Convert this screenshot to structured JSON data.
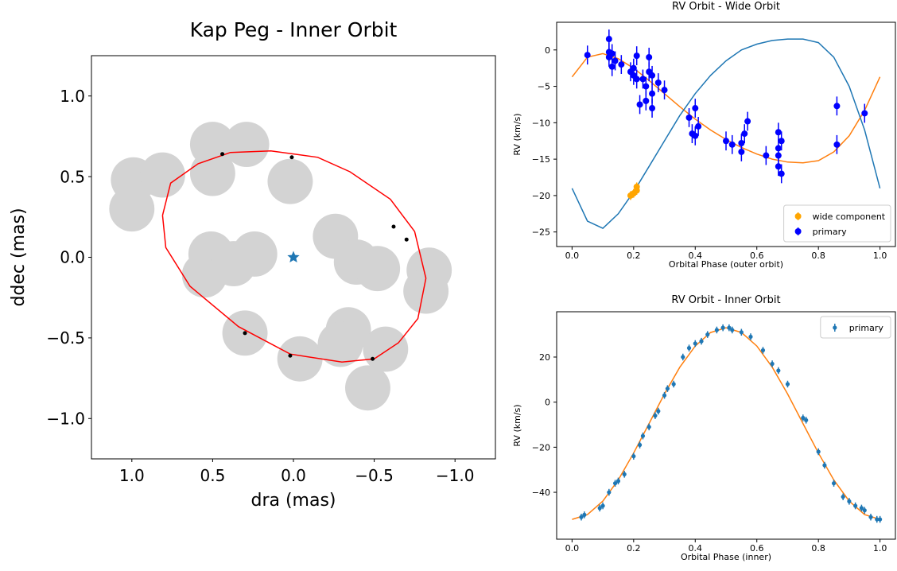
{
  "chart_data": [
    {
      "type": "scatter",
      "title": "Kap Peg - Inner Orbit",
      "xlabel": "dra (mas)",
      "ylabel": "ddec (mas)",
      "xlim": [
        1.25,
        -1.25
      ],
      "ylim": [
        -1.25,
        1.25
      ],
      "xticks": [
        {
          "value": 1,
          "label": "1.0"
        },
        {
          "value": 0.5,
          "label": "0.5"
        },
        {
          "value": 0,
          "label": "0.0"
        },
        {
          "value": -0.5,
          "label": "−0.5"
        },
        {
          "value": -1,
          "label": "−1.0"
        }
      ],
      "yticks": [
        {
          "value": 1,
          "label": "1.0"
        },
        {
          "value": 0.5,
          "label": "0.5"
        },
        {
          "value": 0,
          "label": "0.0"
        },
        {
          "value": -0.5,
          "label": "−0.5"
        },
        {
          "value": -1,
          "label": "−1.0"
        }
      ],
      "grid": false,
      "series": [
        {
          "style": "circle",
          "color": "#d3d3d3",
          "x": [
            0.99,
            0.81,
            1.0,
            0.5,
            0.29,
            0.5,
            0.02,
            0.51,
            0.55,
            0.24,
            0.37,
            -0.26,
            -0.39,
            -0.52,
            -0.84,
            -0.82,
            0.3,
            -0.04,
            -0.34,
            -0.29,
            -0.57,
            -0.46
          ],
          "values": [
            0.48,
            0.51,
            0.3,
            0.7,
            0.7,
            0.52,
            0.47,
            0.02,
            -0.11,
            0.02,
            -0.04,
            0.13,
            -0.03,
            -0.07,
            -0.08,
            -0.21,
            -0.47,
            -0.63,
            -0.45,
            -0.54,
            -0.57,
            -0.81
          ],
          "sizes": [
            0.14,
            0.14,
            0.14,
            0.14,
            0.14,
            0.14,
            0.14,
            0.14,
            0.14,
            0.14,
            0.14,
            0.14,
            0.14,
            0.14,
            0.14,
            0.14,
            0.14,
            0.14,
            0.14,
            0.14,
            0.14,
            0.14
          ]
        },
        {
          "style": "line",
          "color": "#ff0000",
          "x": [
            0.81,
            0.76,
            0.59,
            0.39,
            0.14,
            -0.15,
            -0.35,
            -0.6,
            -0.75,
            -0.82,
            -0.77,
            -0.65,
            -0.5,
            -0.3,
            0.02,
            0.34,
            0.64,
            0.79,
            0.81
          ],
          "values": [
            0.26,
            0.46,
            0.58,
            0.65,
            0.66,
            0.62,
            0.53,
            0.36,
            0.16,
            -0.13,
            -0.38,
            -0.53,
            -0.63,
            -0.65,
            -0.6,
            -0.43,
            -0.18,
            0.06,
            0.26
          ]
        },
        {
          "style": "dot",
          "color": "#000000",
          "x": [
            0.44,
            0.01,
            -0.62,
            -0.7,
            0.3,
            0.02,
            -0.49
          ],
          "values": [
            0.64,
            0.62,
            0.19,
            0.11,
            -0.47,
            -0.61,
            -0.63
          ]
        },
        {
          "style": "star",
          "color": "#1f77b4",
          "x": [
            0
          ],
          "values": [
            0
          ]
        }
      ]
    },
    {
      "type": "errorbar",
      "title": "RV Orbit - Wide Orbit",
      "xlabel": "Orbital Phase (outer orbit)",
      "ylabel": "RV (km/s)",
      "xlim": [
        -0.05,
        1.05
      ],
      "ylim": [
        -27,
        3.8
      ],
      "xticks": [
        {
          "value": 0,
          "label": "0.0"
        },
        {
          "value": 0.2,
          "label": "0.2"
        },
        {
          "value": 0.4,
          "label": "0.4"
        },
        {
          "value": 0.6,
          "label": "0.6"
        },
        {
          "value": 0.8,
          "label": "0.8"
        },
        {
          "value": 1,
          "label": "1.0"
        }
      ],
      "yticks": [
        0,
        {
          "value": -5,
          "label": "−5"
        },
        {
          "value": -10,
          "label": "−10"
        },
        {
          "value": -15,
          "label": "−15"
        },
        {
          "value": -20,
          "label": "−20"
        },
        {
          "value": -25,
          "label": "−25"
        }
      ],
      "grid": false,
      "legend": "lower right",
      "series": [
        {
          "style": "line",
          "color": "#ff7f0e",
          "x": [
            0,
            0.05,
            0.1,
            0.15,
            0.2,
            0.25,
            0.3,
            0.35,
            0.4,
            0.45,
            0.5,
            0.55,
            0.6,
            0.65,
            0.7,
            0.75,
            0.8,
            0.85,
            0.9,
            0.95,
            1.0
          ],
          "values": [
            -3.7,
            -1.0,
            -0.5,
            -1.2,
            -2.5,
            -4.2,
            -6,
            -7.8,
            -9.5,
            -11,
            -12.3,
            -13.4,
            -14.3,
            -15,
            -15.4,
            -15.5,
            -15.2,
            -14,
            -11.8,
            -8.3,
            -3.7
          ]
        },
        {
          "style": "line",
          "color": "#1f77b4",
          "x": [
            0,
            0.05,
            0.1,
            0.15,
            0.2,
            0.25,
            0.3,
            0.35,
            0.4,
            0.45,
            0.5,
            0.55,
            0.6,
            0.65,
            0.7,
            0.75,
            0.8,
            0.85,
            0.9,
            0.95,
            1.0
          ],
          "values": [
            -19,
            -23.5,
            -24.5,
            -22.5,
            -19.5,
            -16,
            -12.5,
            -9,
            -6,
            -3.5,
            -1.5,
            0,
            0.8,
            1.3,
            1.5,
            1.5,
            1,
            -1,
            -5,
            -11,
            -19
          ]
        },
        {
          "style": "errorbar",
          "name": "wide component",
          "color": "#ffa500",
          "x": [
            0.19,
            0.2,
            0.21,
            0.21
          ],
          "values": [
            -20,
            -19.7,
            -19.3,
            -18.8
          ],
          "errors": [
            0.6,
            0.6,
            0.6,
            0.6
          ]
        },
        {
          "style": "errorbar",
          "name": "primary",
          "color": "#0000ff",
          "x": [
            0.05,
            0.12,
            0.12,
            0.12,
            0.13,
            0.13,
            0.14,
            0.16,
            0.19,
            0.2,
            0.2,
            0.21,
            0.21,
            0.22,
            0.23,
            0.24,
            0.24,
            0.25,
            0.25,
            0.26,
            0.26,
            0.26,
            0.28,
            0.3,
            0.38,
            0.39,
            0.4,
            0.4,
            0.41,
            0.5,
            0.52,
            0.55,
            0.55,
            0.56,
            0.57,
            0.63,
            0.67,
            0.67,
            0.67,
            0.67,
            0.68,
            0.68,
            0.86,
            0.86,
            0.95
          ],
          "values": [
            -0.7,
            -0.3,
            1.5,
            -1,
            -0.5,
            -2.3,
            -1.5,
            -2,
            -3,
            -2.5,
            -3.5,
            -4,
            -0.8,
            -7.5,
            -4,
            -5,
            -7,
            -1,
            -3,
            -3.5,
            -6,
            -8,
            -4.5,
            -5.5,
            -9.3,
            -11.5,
            -8,
            -11.8,
            -10.5,
            -12.5,
            -13,
            -12.8,
            -14,
            -11.5,
            -9.8,
            -14.5,
            -11.3,
            -13.5,
            -14.5,
            -16,
            -17,
            -12.5,
            -7.7,
            -13,
            -8.7
          ],
          "errors": [
            1.3,
            1.3,
            1.3,
            1.3,
            1.3,
            1.3,
            1.3,
            1.3,
            1.3,
            1.3,
            1.3,
            1.3,
            1.3,
            1.3,
            1.3,
            1.3,
            1.3,
            1.3,
            1.3,
            1.3,
            1.3,
            1.3,
            1.3,
            1.3,
            1.3,
            1.3,
            1.3,
            1.3,
            1.3,
            1.3,
            1.3,
            1.3,
            1.3,
            1.3,
            1.3,
            1.3,
            1.3,
            1.3,
            1.3,
            1.3,
            1.3,
            1.3,
            1.3,
            1.3,
            1.3
          ]
        }
      ]
    },
    {
      "type": "errorbar",
      "title": "RV Orbit - Inner Orbit",
      "xlabel": "Orbital Phase (inner)",
      "ylabel": "RV (km/s)",
      "xlim": [
        -0.05,
        1.05
      ],
      "ylim": [
        -60.8,
        40.1
      ],
      "xticks": [
        {
          "value": 0,
          "label": "0.0"
        },
        {
          "value": 0.2,
          "label": "0.2"
        },
        {
          "value": 0.4,
          "label": "0.4"
        },
        {
          "value": 0.6,
          "label": "0.6"
        },
        {
          "value": 0.8,
          "label": "0.8"
        },
        {
          "value": 1,
          "label": "1.0"
        }
      ],
      "yticks": [
        20,
        0,
        {
          "value": -20,
          "label": "−20"
        },
        {
          "value": -40,
          "label": "−40"
        }
      ],
      "grid": false,
      "legend": "upper right",
      "series": [
        {
          "style": "line",
          "color": "#ff7f0e",
          "x": [
            0,
            0.05,
            0.1,
            0.15,
            0.2,
            0.25,
            0.3,
            0.35,
            0.4,
            0.45,
            0.5,
            0.55,
            0.6,
            0.65,
            0.7,
            0.75,
            0.8,
            0.85,
            0.9,
            0.95,
            1.0
          ],
          "values": [
            -52,
            -49.9,
            -43.9,
            -34.5,
            -22.6,
            -9.5,
            3.6,
            15.5,
            24.9,
            30.9,
            33,
            30.9,
            24.9,
            15.5,
            3.6,
            -9.5,
            -22.6,
            -34.5,
            -43.9,
            -49.9,
            -52
          ]
        },
        {
          "style": "errorbar",
          "name": "primary",
          "color": "#1f77b4",
          "x": [
            0.03,
            0.04,
            0.09,
            0.1,
            0.12,
            0.14,
            0.15,
            0.17,
            0.2,
            0.22,
            0.23,
            0.25,
            0.27,
            0.28,
            0.3,
            0.31,
            0.33,
            0.36,
            0.38,
            0.4,
            0.42,
            0.44,
            0.47,
            0.49,
            0.51,
            0.52,
            0.55,
            0.58,
            0.62,
            0.65,
            0.67,
            0.7,
            0.75,
            0.76,
            0.8,
            0.82,
            0.85,
            0.88,
            0.9,
            0.92,
            0.94,
            0.95,
            0.97,
            0.99,
            1.0
          ],
          "values": [
            -51,
            -50,
            -47,
            -46,
            -40,
            -36,
            -35,
            -32,
            -24,
            -19,
            -15,
            -11,
            -6,
            -4,
            3,
            6,
            8,
            20,
            24,
            26,
            27,
            30,
            32,
            33,
            33,
            32,
            31,
            29,
            23,
            17,
            14,
            8,
            -7,
            -8,
            -22,
            -28,
            -36,
            -42,
            -44,
            -46,
            -47,
            -48,
            -51,
            -52,
            -52
          ],
          "errors": [
            1.5,
            1.5,
            1.5,
            1.5,
            1.5,
            1.5,
            1.5,
            1.5,
            1.5,
            1.5,
            1.5,
            1.5,
            1.5,
            1.5,
            1.5,
            1.5,
            1.5,
            1.5,
            1.5,
            1.5,
            1.5,
            1.5,
            1.5,
            1.5,
            1.5,
            1.5,
            1.5,
            1.5,
            1.5,
            1.5,
            1.5,
            1.5,
            1.5,
            1.5,
            1.5,
            1.5,
            1.5,
            1.5,
            1.5,
            1.5,
            1.5,
            1.5,
            1.5,
            1.5,
            1.5
          ]
        }
      ]
    }
  ]
}
